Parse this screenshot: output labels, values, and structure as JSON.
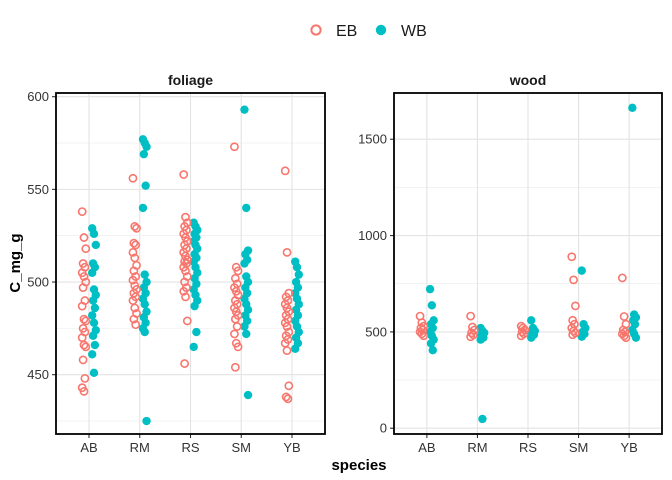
{
  "chart_data": {
    "type": "scatter",
    "xlabel": "species",
    "ylabel": "C_mg_g",
    "categories": [
      "AB",
      "RM",
      "RS",
      "SM",
      "YB"
    ],
    "legend": {
      "position": "top",
      "entries": [
        {
          "name": "EB",
          "color": "#F8766D",
          "shape": "open-circle"
        },
        {
          "name": "WB",
          "color": "#00BFC4",
          "shape": "filled-circle"
        }
      ]
    },
    "grid": true,
    "facets": [
      {
        "title": "foliage",
        "ylim": [
          418,
          602
        ],
        "yticks": [
          450,
          500,
          550,
          600
        ],
        "series": [
          {
            "name": "EB",
            "points": {
              "AB": [
                538,
                524,
                518,
                510,
                508,
                505,
                503,
                500,
                497,
                490,
                487,
                480,
                479,
                475,
                473,
                470,
                466,
                465,
                458,
                448,
                443,
                441
              ],
              "RM": [
                556,
                530,
                529,
                521,
                520,
                516,
                513,
                509,
                506,
                503,
                501,
                498,
                496,
                494,
                492,
                490,
                486,
                483,
                480,
                477
              ],
              "RS": [
                558,
                535,
                532,
                530,
                528,
                526,
                524,
                522,
                520,
                518,
                516,
                514,
                512,
                511,
                510,
                508,
                506,
                503,
                500,
                497,
                495,
                492,
                479,
                456
              ],
              "SM": [
                573,
                508,
                506,
                502,
                499,
                497,
                495,
                493,
                490,
                488,
                486,
                484,
                482,
                480,
                476,
                472,
                467,
                465,
                454
              ],
              "YB": [
                560,
                516,
                494,
                492,
                490,
                488,
                486,
                484,
                482,
                480,
                478,
                476,
                473,
                471,
                469,
                467,
                463,
                444,
                438,
                437
              ]
            }
          },
          {
            "name": "WB",
            "points": {
              "AB": [
                529,
                526,
                520,
                510,
                508,
                505,
                496,
                493,
                490,
                486,
                482,
                478,
                474,
                471,
                466,
                461,
                451
              ],
              "RM": [
                577,
                575,
                573,
                569,
                552,
                540,
                504,
                500,
                497,
                494,
                491,
                488,
                484,
                481,
                478,
                475,
                473,
                425
              ],
              "RS": [
                532,
                530,
                528,
                526,
                524,
                522,
                520,
                518,
                515,
                513,
                511,
                508,
                505,
                502,
                499,
                496,
                493,
                490,
                487,
                473,
                465
              ],
              "SM": [
                593,
                540,
                517,
                515,
                512,
                510,
                503,
                500,
                497,
                494,
                491,
                488,
                485,
                482,
                479,
                476,
                472,
                439
              ],
              "YB": [
                511,
                508,
                504,
                500,
                497,
                494,
                491,
                488,
                485,
                482,
                479,
                476,
                473,
                470,
                467,
                464
              ]
            }
          }
        ]
      },
      {
        "title": "wood",
        "ylim": [
          -30,
          1740
        ],
        "yticks": [
          0,
          500,
          1000,
          1500
        ],
        "series": [
          {
            "name": "EB",
            "points": {
              "AB": [
                582,
                548,
                530,
                520,
                510,
                500,
                490,
                480
              ],
              "RM": [
                582,
                525,
                510,
                495,
                485,
                475
              ],
              "RS": [
                530,
                520,
                510,
                500,
                490,
                480
              ],
              "SM": [
                890,
                770,
                635,
                560,
                540,
                520,
                505,
                495,
                485
              ],
              "YB": [
                780,
                580,
                540,
                510,
                500,
                490,
                480,
                470
              ]
            }
          },
          {
            "name": "WB",
            "points": {
              "AB": [
                722,
                638,
                560,
                540,
                520,
                500,
                480,
                460,
                440,
                405
              ],
              "RM": [
                520,
                505,
                495,
                485,
                470,
                460,
                48
              ],
              "RS": [
                560,
                520,
                505,
                495,
                485,
                470
              ],
              "SM": [
                818,
                540,
                520,
                500,
                490,
                475
              ],
              "YB": [
                1663,
                590,
                575,
                560,
                540,
                510,
                490,
                470
              ]
            }
          }
        ]
      }
    ]
  }
}
